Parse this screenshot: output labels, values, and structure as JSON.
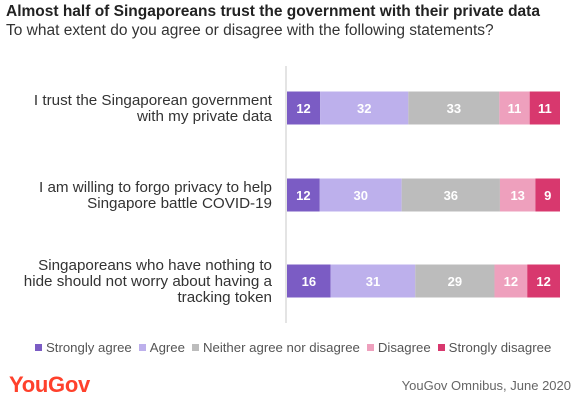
{
  "header": {
    "title": "Almost half of Singaporeans trust the government with their private data",
    "subtitle": "To what extent do you agree or disagree with the following statements?"
  },
  "chart_data": {
    "type": "bar",
    "orientation": "horizontal-stacked-100",
    "categories": [
      [
        "I trust the Singaporean government",
        "with my private data"
      ],
      [
        "I am willing to forgo privacy to help",
        "Singapore battle COVID-19"
      ],
      [
        "Singaporeans who have nothing to",
        "hide should not worry about having a",
        "tracking token"
      ]
    ],
    "series": [
      {
        "name": "Strongly agree",
        "color": "#7b5cc4",
        "values": [
          12,
          12,
          16
        ]
      },
      {
        "name": "Agree",
        "color": "#bdb0ec",
        "values": [
          32,
          30,
          31
        ]
      },
      {
        "name": "Neither agree nor disagree",
        "color": "#bcbcbc",
        "values": [
          33,
          36,
          29
        ]
      },
      {
        "name": "Disagree",
        "color": "#eea0bd",
        "values": [
          11,
          13,
          12
        ]
      },
      {
        "name": "Strongly disagree",
        "color": "#d8386e",
        "values": [
          11,
          9,
          12
        ]
      }
    ],
    "legend_position": "bottom",
    "grid": false
  },
  "footer": {
    "logo": "YouGov",
    "source": "YouGov Omnibus, June 2020"
  }
}
